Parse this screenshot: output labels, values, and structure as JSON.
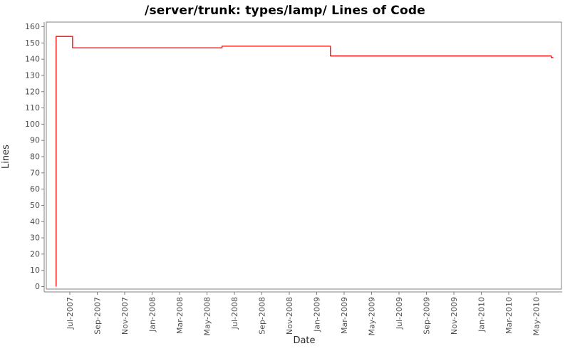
{
  "chart_data": {
    "type": "line",
    "subtype": "step",
    "title": "/server/trunk: types/lamp/ Lines of Code",
    "xlabel": "Date",
    "ylabel": "Lines",
    "ylim": [
      0,
      160
    ],
    "y_ticks": [
      0,
      10,
      20,
      30,
      40,
      50,
      60,
      70,
      80,
      90,
      100,
      110,
      120,
      130,
      140,
      150,
      160
    ],
    "x_ticks": [
      {
        "label": "Jul-2007",
        "xm": 1
      },
      {
        "label": "Sep-2007",
        "xm": 3
      },
      {
        "label": "Nov-2007",
        "xm": 5
      },
      {
        "label": "Jan-2008",
        "xm": 7
      },
      {
        "label": "Mar-2008",
        "xm": 9
      },
      {
        "label": "May-2008",
        "xm": 11
      },
      {
        "label": "Jul-2008",
        "xm": 13
      },
      {
        "label": "Sep-2008",
        "xm": 15
      },
      {
        "label": "Nov-2008",
        "xm": 17
      },
      {
        "label": "Jan-2009",
        "xm": 19
      },
      {
        "label": "Mar-2009",
        "xm": 21
      },
      {
        "label": "May-2009",
        "xm": 23
      },
      {
        "label": "Jul-2009",
        "xm": 25
      },
      {
        "label": "Sep-2009",
        "xm": 27
      },
      {
        "label": "Nov-2009",
        "xm": 29
      },
      {
        "label": "Jan-2010",
        "xm": 31
      },
      {
        "label": "Mar-2010",
        "xm": 33
      },
      {
        "label": "May-2010",
        "xm": 35
      }
    ],
    "x_unit": "months since Jun-2007 (xm=0 is Jun-2007)",
    "grid": false,
    "legend": false,
    "series": [
      {
        "name": "Lines of Code",
        "color": "#ff0000",
        "points": [
          {
            "xm": 0.0,
            "y": 0,
            "date": "Jun-2007"
          },
          {
            "xm": 0.0,
            "y": 154,
            "date": "Jun-2007"
          },
          {
            "xm": 1.2,
            "y": 154,
            "date": "Jul-2007"
          },
          {
            "xm": 1.2,
            "y": 147,
            "date": "Jul-2007"
          },
          {
            "xm": 12.1,
            "y": 147,
            "date": "Jun-2008"
          },
          {
            "xm": 12.1,
            "y": 148,
            "date": "Jun-2008"
          },
          {
            "xm": 20.0,
            "y": 148,
            "date": "Feb-2009"
          },
          {
            "xm": 20.0,
            "y": 142,
            "date": "Feb-2009"
          },
          {
            "xm": 36.1,
            "y": 142,
            "date": "Jun-2010"
          },
          {
            "xm": 36.1,
            "y": 141,
            "date": "Jun-2010"
          },
          {
            "xm": 36.25,
            "y": 141,
            "date": "Jun-2010"
          }
        ]
      }
    ],
    "colors": {
      "background": "#ffffff",
      "frame": "#808080",
      "axis_line": "#808080",
      "tick_label": "#4d4d4d",
      "axis_title": "#2b2b2b",
      "title": "#000000",
      "series_line": "#ff0000"
    }
  }
}
